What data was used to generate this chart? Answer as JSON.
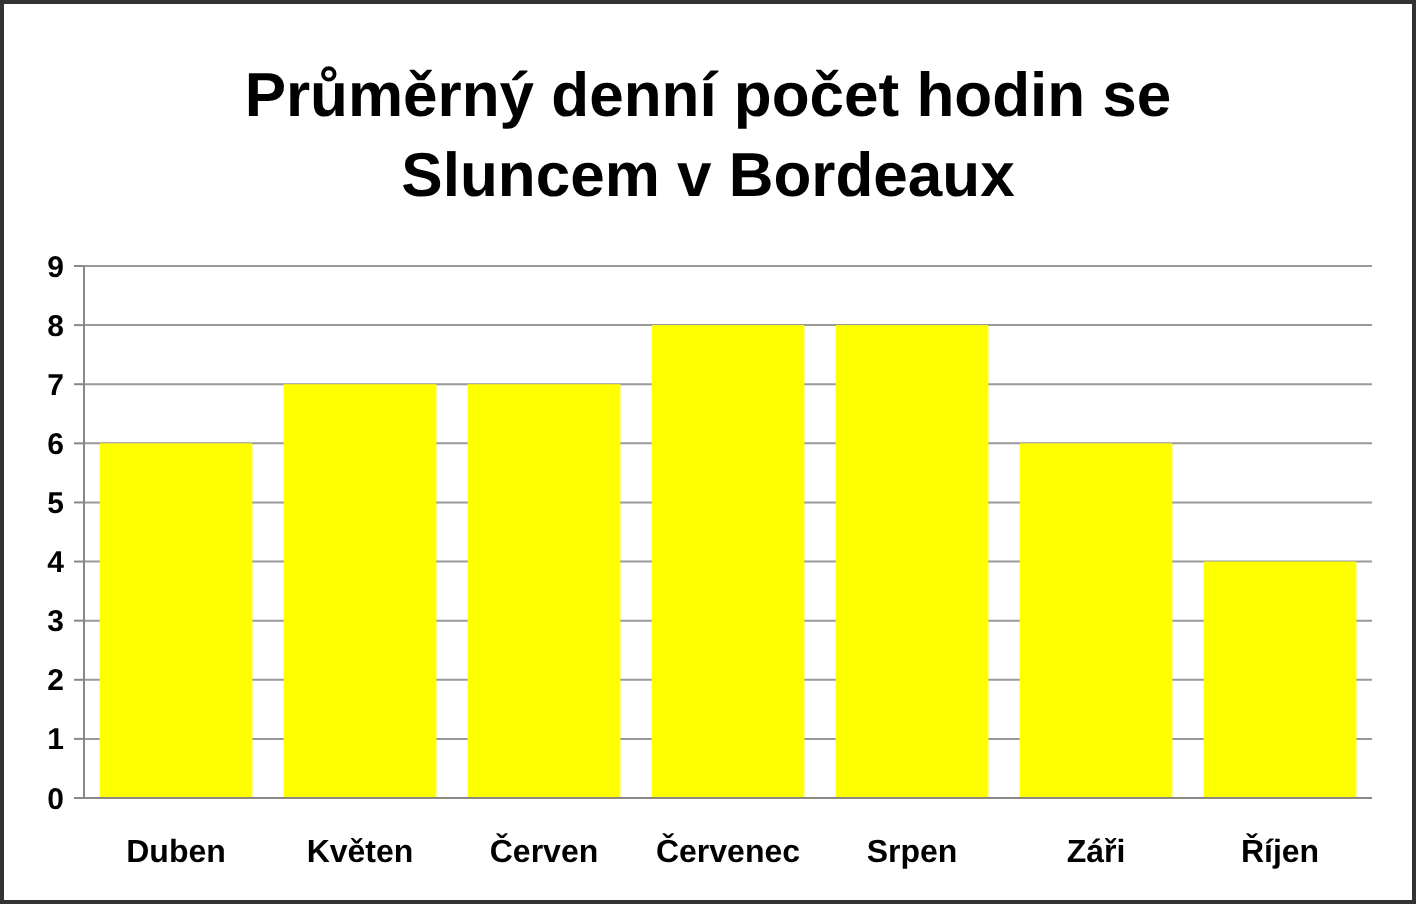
{
  "chart_data": {
    "type": "bar",
    "title": "Průměrný denní počet hodin se Sluncem v Bordeaux",
    "categories": [
      "Duben",
      "Květen",
      "Červen",
      "Červenec",
      "Srpen",
      "Záři",
      "Říjen"
    ],
    "values": [
      6,
      7,
      7,
      8,
      8,
      6,
      4
    ],
    "color": "#ffff00",
    "ylim": [
      0,
      9
    ],
    "yticks": [
      0,
      1,
      2,
      3,
      4,
      5,
      6,
      7,
      8,
      9
    ],
    "grid": "y"
  }
}
